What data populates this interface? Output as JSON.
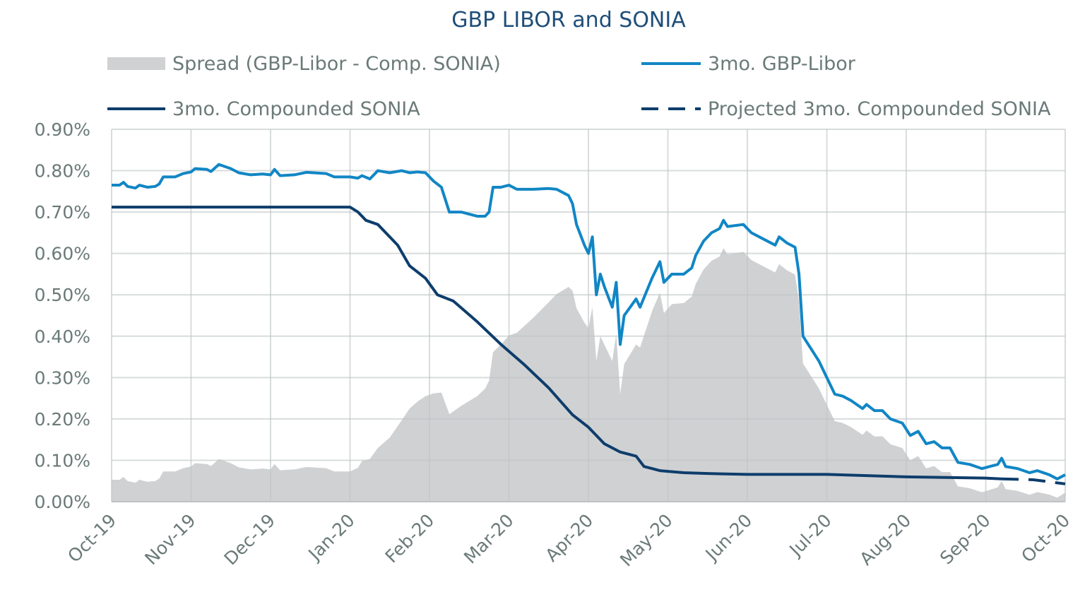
{
  "chart_data": {
    "type": "line",
    "title": "GBP LIBOR and SONIA",
    "xlabel": "",
    "ylabel": "",
    "x_unit": "months since Oct-19",
    "x_tick_labels": [
      "Oct-19",
      "Nov-19",
      "Dec-19",
      "Jan-20",
      "Feb-20",
      "Mar-20",
      "Apr-20",
      "May-20",
      "Jun-20",
      "Jul-20",
      "Aug-20",
      "Sep-20",
      "Oct-20"
    ],
    "y_tick_labels": [
      "0.00%",
      "0.10%",
      "0.20%",
      "0.30%",
      "0.40%",
      "0.50%",
      "0.60%",
      "0.70%",
      "0.80%",
      "0.90%"
    ],
    "xlim": [
      0,
      12
    ],
    "ylim": [
      0,
      0.9
    ],
    "grid": true,
    "legend_placement": "top",
    "series": [
      {
        "name": "3mo. GBP-Libor",
        "kind": "line",
        "color": "#1186c5",
        "points": [
          [
            0,
            0.765
          ],
          [
            0.1,
            0.765
          ],
          [
            0.15,
            0.772
          ],
          [
            0.2,
            0.762
          ],
          [
            0.3,
            0.758
          ],
          [
            0.35,
            0.765
          ],
          [
            0.45,
            0.76
          ],
          [
            0.55,
            0.762
          ],
          [
            0.6,
            0.768
          ],
          [
            0.65,
            0.785
          ],
          [
            0.8,
            0.785
          ],
          [
            0.9,
            0.793
          ],
          [
            1.0,
            0.797
          ],
          [
            1.05,
            0.805
          ],
          [
            1.2,
            0.803
          ],
          [
            1.25,
            0.798
          ],
          [
            1.35,
            0.815
          ],
          [
            1.5,
            0.805
          ],
          [
            1.6,
            0.795
          ],
          [
            1.75,
            0.79
          ],
          [
            1.9,
            0.792
          ],
          [
            2.0,
            0.79
          ],
          [
            2.05,
            0.803
          ],
          [
            2.12,
            0.788
          ],
          [
            2.3,
            0.79
          ],
          [
            2.45,
            0.796
          ],
          [
            2.7,
            0.793
          ],
          [
            2.8,
            0.785
          ],
          [
            3.0,
            0.785
          ],
          [
            3.1,
            0.782
          ],
          [
            3.15,
            0.788
          ],
          [
            3.25,
            0.78
          ],
          [
            3.35,
            0.8
          ],
          [
            3.5,
            0.795
          ],
          [
            3.65,
            0.8
          ],
          [
            3.75,
            0.795
          ],
          [
            3.85,
            0.797
          ],
          [
            3.95,
            0.795
          ],
          [
            4.05,
            0.775
          ],
          [
            4.15,
            0.76
          ],
          [
            4.25,
            0.7
          ],
          [
            4.4,
            0.7
          ],
          [
            4.5,
            0.695
          ],
          [
            4.6,
            0.69
          ],
          [
            4.7,
            0.69
          ],
          [
            4.75,
            0.7
          ],
          [
            4.8,
            0.76
          ],
          [
            4.9,
            0.76
          ],
          [
            5.0,
            0.765
          ],
          [
            5.1,
            0.755
          ],
          [
            5.3,
            0.755
          ],
          [
            5.5,
            0.757
          ],
          [
            5.6,
            0.755
          ],
          [
            5.75,
            0.74
          ],
          [
            5.8,
            0.72
          ],
          [
            5.85,
            0.67
          ],
          [
            5.95,
            0.62
          ],
          [
            6.0,
            0.6
          ],
          [
            6.05,
            0.64
          ],
          [
            6.1,
            0.5
          ],
          [
            6.15,
            0.55
          ],
          [
            6.2,
            0.52
          ],
          [
            6.3,
            0.47
          ],
          [
            6.35,
            0.53
          ],
          [
            6.4,
            0.38
          ],
          [
            6.45,
            0.45
          ],
          [
            6.6,
            0.49
          ],
          [
            6.65,
            0.47
          ],
          [
            6.8,
            0.54
          ],
          [
            6.9,
            0.58
          ],
          [
            6.95,
            0.53
          ],
          [
            7.05,
            0.55
          ],
          [
            7.2,
            0.55
          ],
          [
            7.3,
            0.565
          ],
          [
            7.35,
            0.595
          ],
          [
            7.45,
            0.63
          ],
          [
            7.55,
            0.65
          ],
          [
            7.65,
            0.66
          ],
          [
            7.7,
            0.68
          ],
          [
            7.75,
            0.665
          ],
          [
            7.95,
            0.67
          ],
          [
            8.05,
            0.65
          ],
          [
            8.2,
            0.635
          ],
          [
            8.35,
            0.62
          ],
          [
            8.4,
            0.64
          ],
          [
            8.5,
            0.625
          ],
          [
            8.6,
            0.615
          ],
          [
            8.65,
            0.55
          ],
          [
            8.7,
            0.4
          ],
          [
            8.8,
            0.37
          ],
          [
            8.9,
            0.34
          ],
          [
            9.0,
            0.3
          ],
          [
            9.1,
            0.26
          ],
          [
            9.2,
            0.255
          ],
          [
            9.3,
            0.245
          ],
          [
            9.45,
            0.225
          ],
          [
            9.5,
            0.235
          ],
          [
            9.6,
            0.22
          ],
          [
            9.7,
            0.22
          ],
          [
            9.8,
            0.2
          ],
          [
            9.95,
            0.19
          ],
          [
            10.05,
            0.16
          ],
          [
            10.15,
            0.17
          ],
          [
            10.25,
            0.14
          ],
          [
            10.35,
            0.145
          ],
          [
            10.45,
            0.13
          ],
          [
            10.55,
            0.13
          ],
          [
            10.65,
            0.095
          ],
          [
            10.8,
            0.09
          ],
          [
            10.95,
            0.08
          ],
          [
            11.05,
            0.085
          ],
          [
            11.15,
            0.09
          ],
          [
            11.2,
            0.105
          ],
          [
            11.25,
            0.085
          ],
          [
            11.4,
            0.08
          ],
          [
            11.55,
            0.07
          ],
          [
            11.65,
            0.075
          ],
          [
            11.8,
            0.065
          ],
          [
            11.9,
            0.055
          ],
          [
            12.0,
            0.065
          ]
        ]
      },
      {
        "name": "3mo. Compounded SONIA",
        "kind": "line",
        "color": "#0d3d6b",
        "points": [
          [
            0,
            0.712
          ],
          [
            3.0,
            0.712
          ],
          [
            3.1,
            0.7
          ],
          [
            3.2,
            0.68
          ],
          [
            3.35,
            0.67
          ],
          [
            3.5,
            0.64
          ],
          [
            3.6,
            0.62
          ],
          [
            3.75,
            0.57
          ],
          [
            3.95,
            0.54
          ],
          [
            4.1,
            0.5
          ],
          [
            4.3,
            0.485
          ],
          [
            4.6,
            0.435
          ],
          [
            4.9,
            0.38
          ],
          [
            5.2,
            0.33
          ],
          [
            5.5,
            0.275
          ],
          [
            5.8,
            0.21
          ],
          [
            6.0,
            0.18
          ],
          [
            6.2,
            0.14
          ],
          [
            6.4,
            0.12
          ],
          [
            6.6,
            0.11
          ],
          [
            6.7,
            0.085
          ],
          [
            6.9,
            0.075
          ],
          [
            7.2,
            0.07
          ],
          [
            7.5,
            0.068
          ],
          [
            8.0,
            0.066
          ],
          [
            9.0,
            0.066
          ],
          [
            9.5,
            0.063
          ],
          [
            10.0,
            0.06
          ],
          [
            11.0,
            0.057
          ],
          [
            11.2,
            0.055
          ]
        ]
      },
      {
        "name": "Projected 3mo. Compounded SONIA",
        "kind": "dashed-line",
        "color": "#0d3d6b",
        "points": [
          [
            11.2,
            0.055
          ],
          [
            11.6,
            0.053
          ],
          [
            12.0,
            0.043
          ]
        ]
      },
      {
        "name": "Spread (GBP-Libor - Comp. SONIA)",
        "kind": "area",
        "color": "#d0d1d3",
        "derived": "3mo. GBP-Libor minus 3mo. Compounded SONIA (projected after Aug-20)"
      }
    ],
    "legend": [
      {
        "label": "Spread (GBP-Libor - Comp. SONIA)",
        "swatch": "area"
      },
      {
        "label": "3mo. GBP-Libor",
        "swatch": "line"
      },
      {
        "label": "3mo. Compounded SONIA",
        "swatch": "line"
      },
      {
        "label": "Projected 3mo. Compounded SONIA",
        "swatch": "dashed"
      }
    ]
  }
}
